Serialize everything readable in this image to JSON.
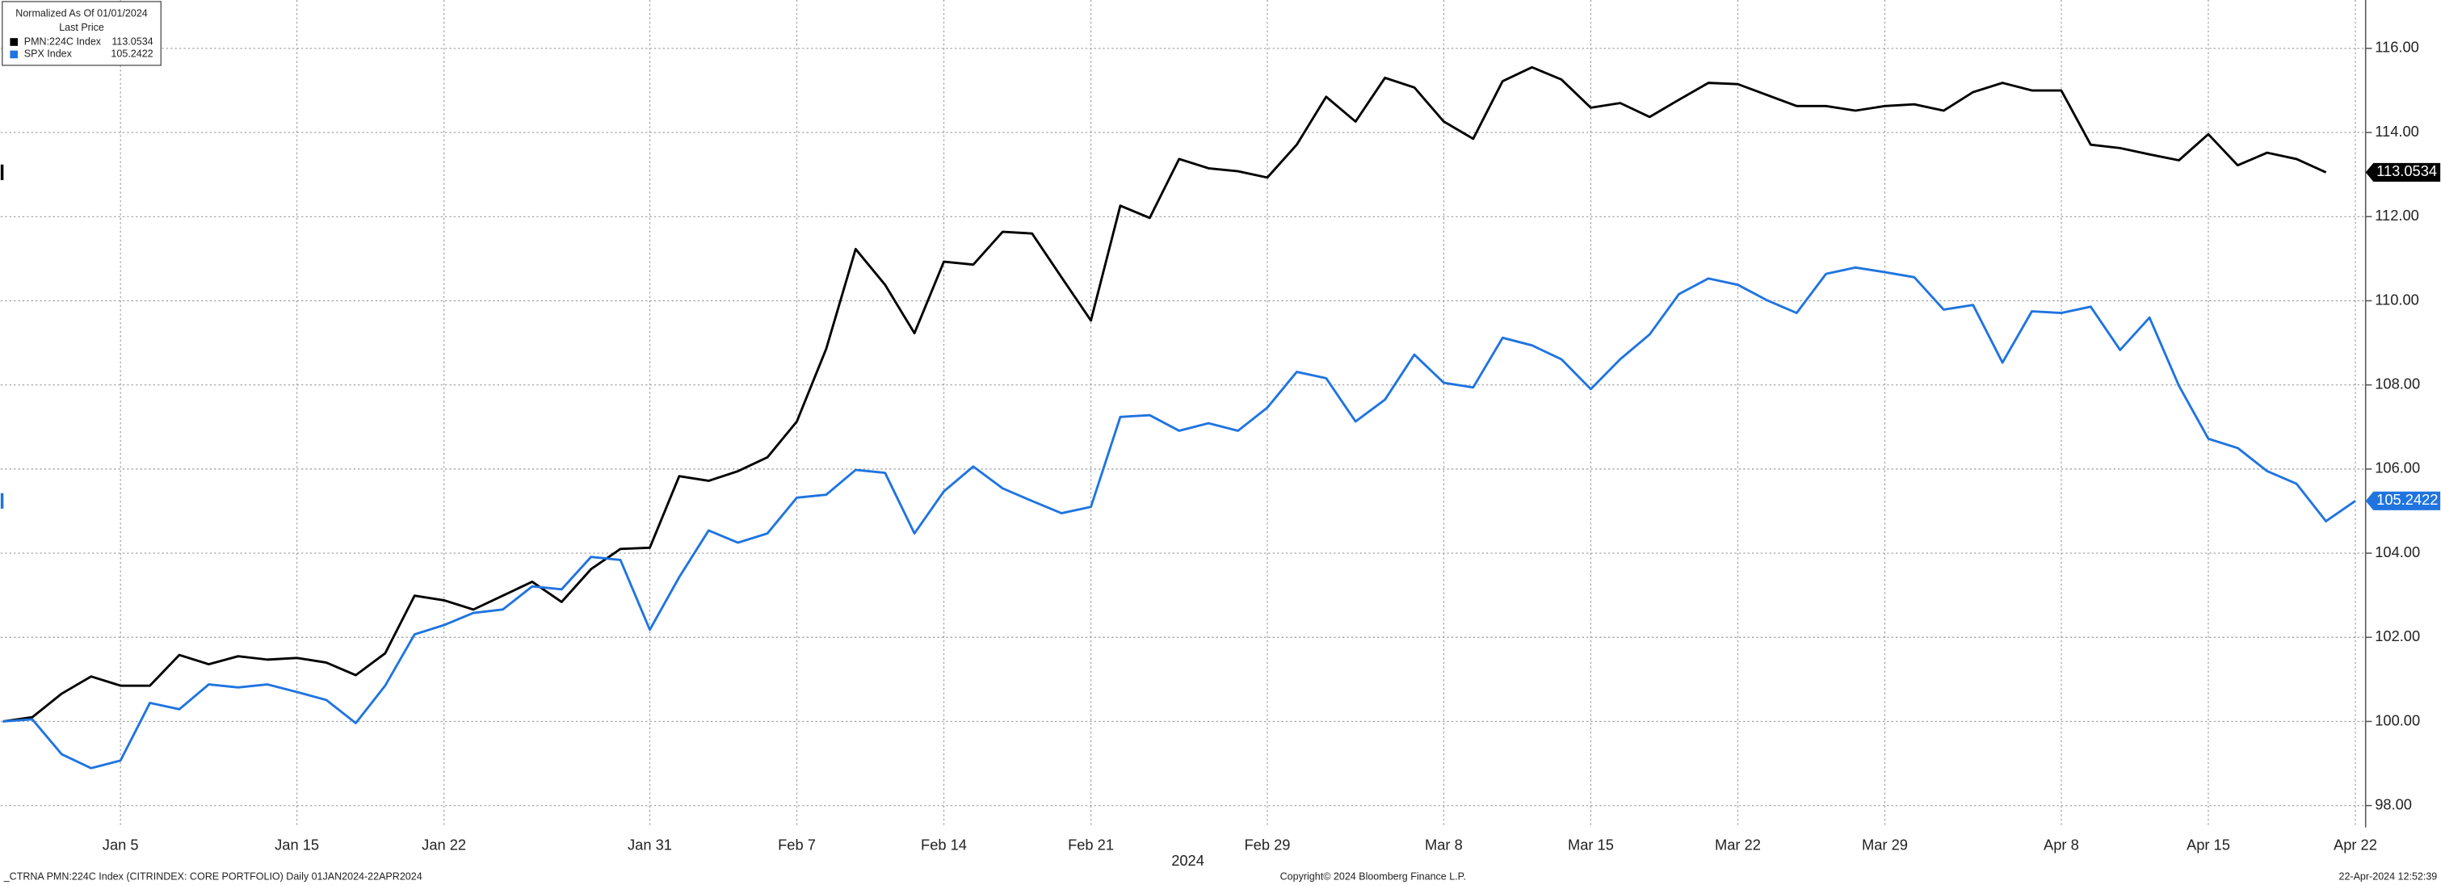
{
  "chart_data": {
    "type": "line",
    "legend_title": "Normalized As Of 01/01/2024",
    "legend_subtitle": "Last Price",
    "x_label": "2024",
    "footer_left": "_CTRNA PMN:224C Index (CITRINDEX: CORE PORTFOLIO)  Daily 01JAN2024-22APR2024",
    "footer_center": "Copyright© 2024 Bloomberg Finance L.P.",
    "footer_right": "22-Apr-2024 12:52:39",
    "categories": [
      null,
      null,
      null,
      null,
      "Jan 5",
      null,
      null,
      null,
      null,
      null,
      "Jan 15",
      null,
      null,
      null,
      null,
      "Jan 22",
      null,
      null,
      null,
      null,
      null,
      null,
      "Jan 31",
      null,
      null,
      null,
      null,
      "Feb 7",
      null,
      null,
      null,
      null,
      "Feb 14",
      null,
      null,
      null,
      null,
      "Feb 21",
      null,
      null,
      null,
      null,
      null,
      "Feb 29",
      null,
      null,
      null,
      null,
      null,
      "Mar 8",
      null,
      null,
      null,
      null,
      "Mar 15",
      null,
      null,
      null,
      null,
      "Mar 22",
      null,
      null,
      null,
      null,
      "Mar 29",
      null,
      null,
      null,
      null,
      null,
      "Apr 8",
      null,
      null,
      null,
      null,
      "Apr 15",
      null,
      null,
      null,
      null,
      "Apr 22"
    ],
    "series": [
      {
        "name": "PMN:224C Index",
        "color": "#000000",
        "last_value": 113.0534,
        "values": [
          100,
          100.1,
          100.66,
          101.07,
          100.85,
          100.85,
          101.58,
          101.36,
          101.55,
          101.47,
          101.51,
          101.4,
          101.1,
          101.62,
          102.99,
          102.88,
          102.66,
          102.99,
          103.32,
          102.84,
          103.62,
          104.1,
          104.13,
          105.83,
          105.72,
          105.95,
          106.28,
          107.13,
          108.86,
          111.23,
          110.38,
          109.23,
          110.93,
          110.86,
          111.64,
          111.6,
          110.56,
          109.53,
          112.26,
          111.97,
          113.37,
          113.15,
          113.08,
          112.93,
          113.71,
          114.85,
          114.26,
          115.3,
          115.07,
          114.26,
          113.85,
          115.22,
          115.55,
          115.26,
          114.59,
          114.7,
          114.37,
          114.78,
          115.18,
          115.15,
          114.89,
          114.63,
          114.63,
          114.52,
          114.63,
          114.67,
          114.52,
          114.96,
          115.18,
          115.0,
          115.0,
          113.71,
          113.63,
          113.48,
          113.34,
          113.96,
          113.22,
          113.52,
          113.37,
          113.0534,
          null
        ]
      },
      {
        "name": "SPX Index",
        "color": "#1f74e0",
        "last_value": 105.2422,
        "values": [
          100,
          100.05,
          99.22,
          98.89,
          99.07,
          100.44,
          100.29,
          100.88,
          100.81,
          100.88,
          100.7,
          100.51,
          99.96,
          100.85,
          102.07,
          102.29,
          102.58,
          102.66,
          103.21,
          103.14,
          103.91,
          103.84,
          102.18,
          103.43,
          104.54,
          104.25,
          104.47,
          105.32,
          105.39,
          105.98,
          105.91,
          104.47,
          105.47,
          106.06,
          105.54,
          105.24,
          104.95,
          105.1,
          107.24,
          107.28,
          106.91,
          107.09,
          106.91,
          107.46,
          108.31,
          108.16,
          107.13,
          107.65,
          108.72,
          108.05,
          107.94,
          109.12,
          108.94,
          108.61,
          107.9,
          108.61,
          109.2,
          110.16,
          110.53,
          110.38,
          110.01,
          109.71,
          110.64,
          110.79,
          110.68,
          110.56,
          109.79,
          109.9,
          108.53,
          109.75,
          109.71,
          109.86,
          108.83,
          109.6,
          107.98,
          106.72,
          106.5,
          105.95,
          105.65,
          104.76,
          105.2422
        ]
      }
    ],
    "ylim": [
      97.48,
      117.15
    ],
    "yticks": [
      {
        "value": 98,
        "label": "98.00"
      },
      {
        "value": 100,
        "label": "100.00"
      },
      {
        "value": 102,
        "label": "102.00"
      },
      {
        "value": 104,
        "label": "104.00"
      },
      {
        "value": 106,
        "label": "106.00"
      },
      {
        "value": 108,
        "label": "108.00"
      },
      {
        "value": 110,
        "label": "110.00"
      },
      {
        "value": 112,
        "label": "112.00"
      },
      {
        "value": 114,
        "label": "114.00"
      },
      {
        "value": 116,
        "label": "116.00"
      }
    ],
    "grid": true
  }
}
